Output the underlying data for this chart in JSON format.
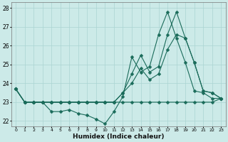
{
  "xlabel": "Humidex (Indice chaleur)",
  "bg_color": "#cceae8",
  "grid_color": "#aad4d2",
  "line_color": "#1a6b5a",
  "x_hours": [
    0,
    1,
    2,
    3,
    4,
    5,
    6,
    7,
    8,
    9,
    10,
    11,
    12,
    13,
    14,
    15,
    16,
    17,
    18,
    19,
    20,
    21,
    22,
    23
  ],
  "series": {
    "flat": [
      23.7,
      23.0,
      23.0,
      23.0,
      23.0,
      23.0,
      23.0,
      23.0,
      23.0,
      23.0,
      23.0,
      23.0,
      23.0,
      23.0,
      23.0,
      23.0,
      23.0,
      23.0,
      23.0,
      23.0,
      23.0,
      23.0,
      23.0,
      23.2
    ],
    "upper": [
      23.7,
      23.0,
      23.0,
      23.0,
      23.0,
      23.0,
      23.0,
      23.0,
      23.0,
      23.0,
      23.0,
      23.0,
      23.5,
      24.0,
      24.8,
      24.2,
      24.5,
      25.8,
      26.6,
      26.4,
      25.1,
      23.6,
      23.5,
      23.2
    ],
    "peak": [
      23.7,
      23.0,
      23.0,
      23.0,
      23.0,
      23.0,
      23.0,
      23.0,
      23.0,
      23.0,
      23.0,
      23.0,
      23.5,
      24.5,
      25.5,
      24.6,
      24.9,
      26.6,
      27.8,
      26.4,
      25.1,
      23.6,
      23.5,
      23.2
    ],
    "zigzag": [
      23.7,
      23.0,
      23.0,
      23.0,
      22.5,
      22.5,
      22.6,
      22.4,
      22.3,
      22.1,
      21.85,
      22.5,
      23.3,
      25.4,
      24.6,
      24.9,
      26.6,
      27.8,
      26.4,
      25.1,
      23.6,
      23.5,
      23.2,
      23.2
    ]
  },
  "ylim": [
    21.7,
    28.3
  ],
  "yticks": [
    22,
    23,
    24,
    25,
    26,
    27,
    28
  ],
  "xtick_labels": [
    "0",
    "1",
    "2",
    "3",
    "4",
    "5",
    "6",
    "7",
    "8",
    "9",
    "10",
    "11",
    "12",
    "13",
    "14",
    "15",
    "16",
    "17",
    "18",
    "19",
    "20",
    "21",
    "22",
    "23"
  ],
  "marker": "D",
  "marker_size": 2.5,
  "linewidth": 0.8
}
